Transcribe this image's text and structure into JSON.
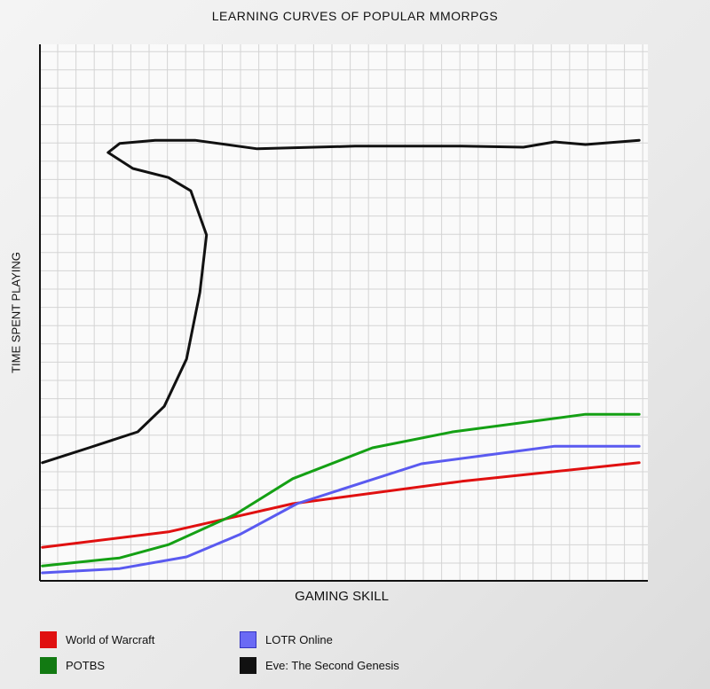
{
  "chart_data": {
    "type": "line",
    "title": "LEARNING CURVES OF POPULAR MMORPGS",
    "xlabel": "GAMING SKILL",
    "ylabel": "TIME SPENT PLAYING",
    "xlim": [
      0,
      100
    ],
    "ylim": [
      0,
      100
    ],
    "grid": true,
    "legend_placement": "bottom",
    "series": [
      {
        "name": "World of Warcraft",
        "color": "#e01010",
        "points": [
          [
            0.4,
            6.3
          ],
          [
            21.3,
            9.2
          ],
          [
            41.9,
            14.5
          ],
          [
            69.9,
            18.7
          ],
          [
            99.3,
            22.2
          ]
        ]
      },
      {
        "name": "LOTR Online",
        "color": "#5a5af0",
        "points": [
          [
            0.4,
            1.5
          ],
          [
            13.2,
            2.3
          ],
          [
            24.3,
            4.5
          ],
          [
            33.1,
            8.7
          ],
          [
            42.6,
            14.5
          ],
          [
            63.2,
            22
          ],
          [
            85.3,
            25.3
          ],
          [
            99.3,
            25.3
          ]
        ]
      },
      {
        "name": "POTBS",
        "color": "#14a014",
        "points": [
          [
            0.4,
            2.8
          ],
          [
            13.2,
            4.3
          ],
          [
            21.3,
            6.8
          ],
          [
            32.4,
            12.5
          ],
          [
            41.9,
            19.2
          ],
          [
            55.1,
            25
          ],
          [
            68.4,
            28
          ],
          [
            90.4,
            31.3
          ],
          [
            99.3,
            31.3
          ]
        ]
      },
      {
        "name": "Eve: The Second Genesis",
        "color": "#111111",
        "points": [
          [
            0.4,
            22.2
          ],
          [
            8.1,
            25
          ],
          [
            16.2,
            28
          ],
          [
            20.6,
            32.8
          ],
          [
            24.3,
            41.7
          ],
          [
            26.5,
            54.2
          ],
          [
            27.6,
            65
          ],
          [
            25,
            73.3
          ],
          [
            21.3,
            75.8
          ],
          [
            15.4,
            77.5
          ],
          [
            11.3,
            80.5
          ],
          [
            13.2,
            82.2
          ],
          [
            19.1,
            82.8
          ],
          [
            25.7,
            82.8
          ],
          [
            36,
            81.2
          ],
          [
            52.2,
            81.7
          ],
          [
            69.9,
            81.7
          ],
          [
            80.1,
            81.5
          ],
          [
            85.3,
            82.5
          ],
          [
            90.4,
            82
          ],
          [
            99.3,
            82.8
          ]
        ]
      }
    ]
  }
}
